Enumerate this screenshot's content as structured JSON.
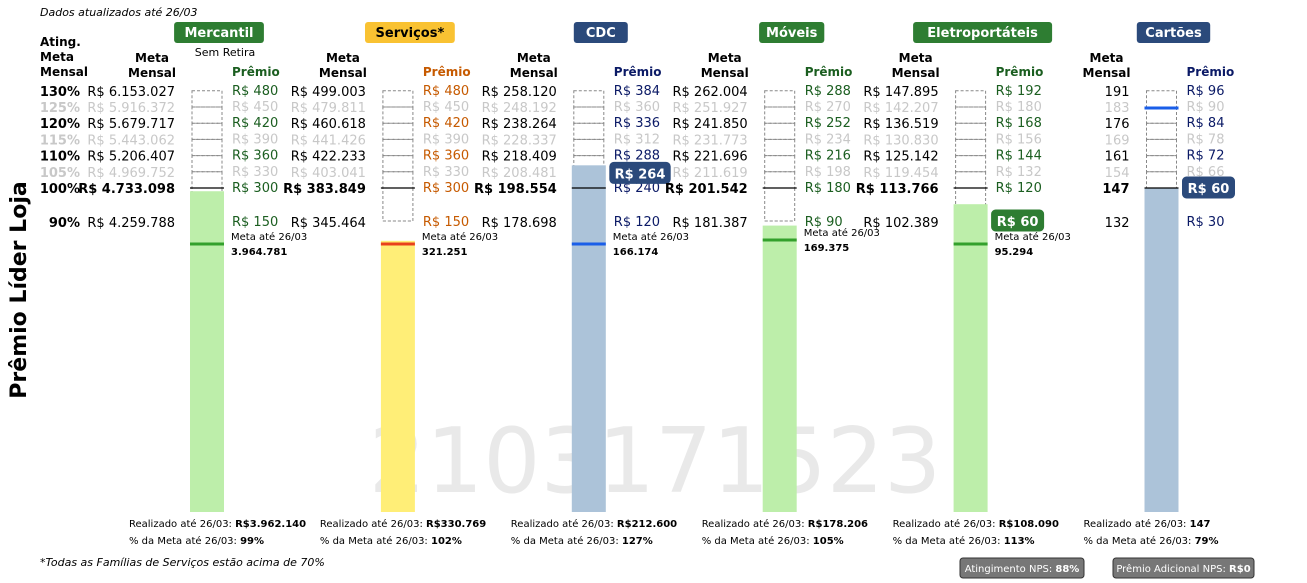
{
  "header": {
    "updated": "Dados atualizados até 26/03"
  },
  "side_title": "Prêmio Líder Loja",
  "watermark": "2103171523",
  "level_header": "Ating.\nMeta\nMensal",
  "meta_header": "Meta\nMensal",
  "footnote": "*Todas as Famílias de Serviços estão acima de 70%",
  "levels": [
    {
      "label": "130%",
      "pct": 130,
      "faded": false
    },
    {
      "label": "125%",
      "pct": 125,
      "faded": true
    },
    {
      "label": "120%",
      "pct": 120,
      "faded": false
    },
    {
      "label": "115%",
      "pct": 115,
      "faded": true
    },
    {
      "label": "110%",
      "pct": 110,
      "faded": false
    },
    {
      "label": "105%",
      "pct": 105,
      "faded": true
    },
    {
      "label": "100%",
      "pct": 100,
      "faded": false
    },
    {
      "label": "90%",
      "pct": 90,
      "faded": false
    }
  ],
  "badges": {
    "nps_label": "Atingimento NPS:",
    "nps_value": "88%",
    "bonus_label": "Prêmio Adicional NPS:",
    "bonus_value": "R$0"
  },
  "chart_data": {
    "type": "bar",
    "categories": [
      "Mercantil",
      "Serviços*",
      "CDC",
      "Móveis",
      "Eletroportáteis",
      "Cartões"
    ],
    "premio_header": "Prêmio",
    "series": [
      {
        "name": "Mercantil",
        "color": "#bdeeaa",
        "tag_color": "#2e7d32",
        "tag_text_color": "#ffffff",
        "premio_color": "#1b5e20",
        "marker_color": "#33a02c",
        "subtitle": "Sem Retira",
        "attainment": 99,
        "targets": [
          "R$ 6.153.027",
          "R$ 5.916.372",
          "R$ 5.679.717",
          "R$ 5.443.062",
          "R$ 5.206.407",
          "R$ 4.969.752",
          "R$ 4.733.098",
          "R$ 4.259.788"
        ],
        "premios": [
          "R$ 480",
          "R$ 450",
          "R$ 420",
          "R$ 390",
          "R$ 360",
          "R$ 330",
          "R$ 300",
          "R$ 150"
        ],
        "meta_label": "Meta até 26/03",
        "meta_value": "3.964.781",
        "realizado_label": "Realizado até 26/03:",
        "realizado_value": "R$3.962.140",
        "pct_label": "% da Meta até 26/03:",
        "pct_value": "99%",
        "bubble": ""
      },
      {
        "name": "Serviços*",
        "color": "#ffee77",
        "tag_color": "#f9c232",
        "tag_text_color": "#000000",
        "premio_color": "#c65a00",
        "marker_color": "#e8411c",
        "subtitle": "",
        "attainment": 83.7,
        "targets": [
          "R$ 499.003",
          "R$ 479.811",
          "R$ 460.618",
          "R$ 441.426",
          "R$ 422.233",
          "R$ 403.041",
          "R$ 383.849",
          "R$ 345.464"
        ],
        "premios": [
          "R$ 480",
          "R$ 450",
          "R$ 420",
          "R$ 390",
          "R$ 360",
          "R$ 330",
          "R$ 300",
          "R$ 150"
        ],
        "meta_label": "Meta até 26/03",
        "meta_value": "321.251",
        "realizado_label": "Realizado até 26/03:",
        "realizado_value": "R$330.769",
        "pct_label": "% da Meta até 26/03:",
        "pct_value": "102%",
        "bubble": ""
      },
      {
        "name": "CDC",
        "color": "#acc3d9",
        "tag_color": "#2b4a7b",
        "tag_text_color": "#ffffff",
        "premio_color": "#0b1a66",
        "marker_color": "#1a5ee8",
        "subtitle": "",
        "attainment": 107,
        "targets": [
          "R$ 258.120",
          "R$ 248.192",
          "R$ 238.264",
          "R$ 228.337",
          "R$ 218.409",
          "R$ 208.481",
          "R$ 198.554",
          "R$ 178.698"
        ],
        "premios": [
          "R$ 384",
          "R$ 360",
          "R$ 336",
          "R$ 312",
          "R$ 288",
          "R$ 264",
          "R$ 240",
          "R$ 120"
        ],
        "meta_label": "Meta até 26/03",
        "meta_value": "166.174",
        "realizado_label": "Realizado até 26/03:",
        "realizado_value": "R$212.600",
        "pct_label": "% da Meta até 26/03:",
        "pct_value": "127%",
        "bubble": "R$ 264",
        "bubble_pct": 104.5
      },
      {
        "name": "Móveis",
        "color": "#bdeeaa",
        "tag_color": "#2e7d32",
        "tag_text_color": "#ffffff",
        "premio_color": "#1b5e20",
        "marker_color": "#33a02c",
        "subtitle": "",
        "attainment": 88.4,
        "targets": [
          "R$ 262.004",
          "R$ 251.927",
          "R$ 241.850",
          "R$ 231.773",
          "R$ 221.696",
          "R$ 211.619",
          "R$ 201.542",
          "R$ 181.387"
        ],
        "premios": [
          "R$ 288",
          "R$ 270",
          "R$ 252",
          "R$ 234",
          "R$ 216",
          "R$ 198",
          "R$ 180",
          "R$ 90"
        ],
        "meta_label": "Meta até 26/03",
        "meta_value": "169.375",
        "realizado_label": "Realizado até 26/03:",
        "realizado_value": "R$178.206",
        "pct_label": "% da Meta até 26/03:",
        "pct_value": "105%",
        "bubble": ""
      },
      {
        "name": "Eletroportáteis",
        "color": "#bdeeaa",
        "tag_color": "#2e7d32",
        "tag_text_color": "#ffffff",
        "premio_color": "#1b5e20",
        "marker_color": "#33a02c",
        "subtitle": "",
        "attainment": 95,
        "targets": [
          "R$ 147.895",
          "R$ 142.207",
          "R$ 136.519",
          "R$ 130.830",
          "R$ 125.142",
          "R$ 119.454",
          "R$ 113.766",
          "R$ 102.389"
        ],
        "premios": [
          "R$ 192",
          "R$ 180",
          "R$ 168",
          "R$ 156",
          "R$ 144",
          "R$ 132",
          "R$ 120",
          "R$ 60"
        ],
        "meta_label": "Meta até 26/03",
        "meta_value": "95.294",
        "realizado_label": "Realizado até 26/03:",
        "realizado_value": "R$108.090",
        "pct_label": "% da Meta até 26/03:",
        "pct_value": "113%",
        "bubble": "R$ 60",
        "bubble_pct": 90
      },
      {
        "name": "Cartões",
        "color": "#acc3d9",
        "tag_color": "#2b4a7b",
        "tag_text_color": "#ffffff",
        "premio_color": "#0b1a66",
        "marker_color": "#1a5ee8",
        "subtitle": "",
        "attainment": 100,
        "targets": [
          "191",
          "183",
          "176",
          "169",
          "161",
          "154",
          "147",
          "132"
        ],
        "premios": [
          "R$ 96",
          "R$ 90",
          "R$ 84",
          "R$ 78",
          "R$ 72",
          "R$ 66",
          "R$ 60",
          "R$ 30"
        ],
        "meta_label": "",
        "meta_value": "",
        "meta_line_pct": 125,
        "realizado_label": "Realizado até 26/03:",
        "realizado_value": "147",
        "pct_label": "% da Meta até 26/03:",
        "pct_value": "79%",
        "bubble": "R$ 60",
        "bubble_pct": 100
      }
    ]
  }
}
